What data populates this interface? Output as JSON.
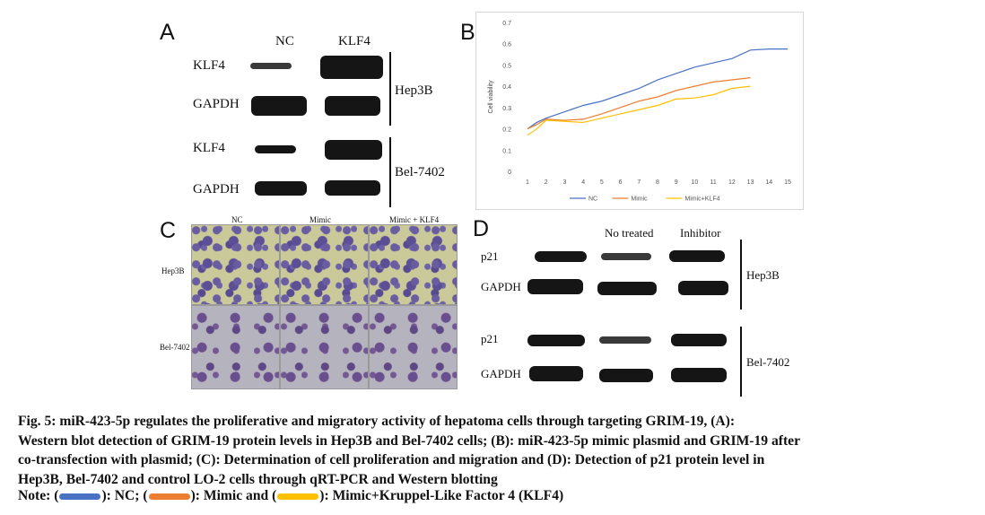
{
  "panel_a": {
    "letter": "A",
    "col_nc": "NC",
    "col_klf4": "KLF4",
    "rows": [
      "KLF4",
      "GAPDH",
      "KLF4",
      "GAPDH"
    ],
    "group_hep3b": "Hep3B",
    "group_bel": "Bel-7402"
  },
  "panel_b": {
    "letter": "B"
  },
  "panel_c": {
    "letter": "C",
    "cols": [
      "NC",
      "Mimic",
      "Mimic + KLF4"
    ],
    "rows": [
      "Hep3B",
      "Bel-7402"
    ]
  },
  "panel_d": {
    "letter": "D",
    "col_nt": "No treated",
    "col_inh": "Inhibitor",
    "rows": [
      "p21",
      "GAPDH",
      "p21",
      "GAPDH"
    ],
    "group_hep3b": "Hep3B",
    "group_bel": "Bel-7402"
  },
  "caption": {
    "line1": "Fig. 5: miR-423-5p regulates the proliferative and migratory activity of hepatoma cells through targeting GRIM-19, (A):",
    "line2": "Western blot detection of GRIM-19 protein levels in Hep3B and Bel-7402 cells; (B): miR-423-5p mimic plasmid and GRIM-19 after",
    "line3": "co-transfection with plasmid; (C): Determination of cell proliferation and migration and (D): Detection of p21 protein level in",
    "line4": "Hep3B, Bel-7402 and control LO-2 cells through qRT-PCR and Western blotting",
    "note_prefix": "Note: (",
    "note_nc": "): NC; (",
    "note_mimic": "): Mimic and (",
    "note_klf4": "): Mimic+Kruppel-Like Factor 4 (KLF4)"
  },
  "colors": {
    "nc": "#4a72c4",
    "mimic": "#ed7d31",
    "mimic_klf4": "#ffc000"
  },
  "chart_data": {
    "type": "line",
    "x": [
      1,
      2,
      3,
      4,
      5,
      6,
      7,
      8,
      9,
      10,
      11,
      12,
      13,
      14,
      15
    ],
    "xlim": [
      1,
      15
    ],
    "ylim": [
      0,
      0.7
    ],
    "yticks": [
      0,
      0.1,
      0.2,
      0.3,
      0.4,
      0.5,
      0.6,
      0.7
    ],
    "ylabel": "Cell viability",
    "legend_position": "bottom",
    "grid": false,
    "series": [
      {
        "name": "NC",
        "color": "#4a72c4",
        "x": [
          1,
          1.5,
          2,
          3,
          4,
          5,
          6,
          7,
          8,
          9,
          10,
          11,
          12,
          13,
          14,
          15
        ],
        "values": [
          0.2,
          0.23,
          0.25,
          0.28,
          0.31,
          0.33,
          0.36,
          0.39,
          0.43,
          0.46,
          0.49,
          0.51,
          0.53,
          0.57,
          0.575,
          0.575
        ]
      },
      {
        "name": "Mimic",
        "color": "#ed7d31",
        "x": [
          1,
          1.5,
          2,
          3,
          4,
          5,
          6,
          7,
          8,
          9,
          10,
          11,
          12,
          13
        ],
        "values": [
          0.2,
          0.22,
          0.245,
          0.24,
          0.245,
          0.27,
          0.3,
          0.33,
          0.35,
          0.38,
          0.4,
          0.42,
          0.43,
          0.44
        ]
      },
      {
        "name": "Mimic+KLF4",
        "color": "#ffc000",
        "x": [
          1,
          1.5,
          2,
          3,
          4,
          5,
          6,
          7,
          8,
          9,
          10,
          11,
          12,
          13
        ],
        "values": [
          0.17,
          0.2,
          0.24,
          0.235,
          0.23,
          0.25,
          0.27,
          0.29,
          0.31,
          0.34,
          0.345,
          0.36,
          0.39,
          0.4
        ]
      }
    ]
  }
}
